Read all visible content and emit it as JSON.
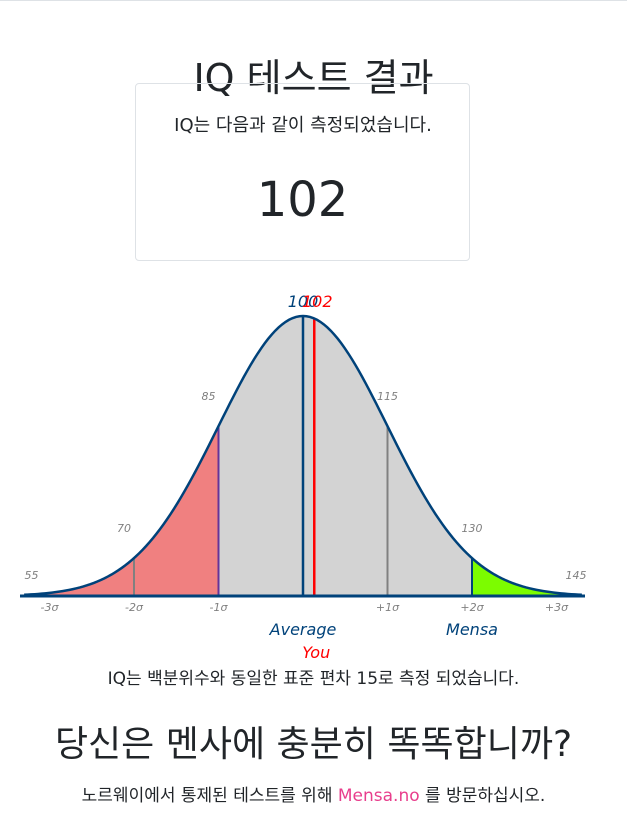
{
  "page": {
    "title": "IQ 테스트 결과",
    "measured_text": "IQ는 다음과 같이 측정되었습니다.",
    "score": "102"
  },
  "chart_data": {
    "type": "area",
    "distribution": "normal",
    "mean": 100,
    "sd": 15,
    "xlim": [
      55,
      145
    ],
    "sigma_labels": [
      "-3σ",
      "-2σ",
      "-1σ",
      "+1σ",
      "+2σ",
      "+3σ"
    ],
    "iq_labels": [
      "55",
      "70",
      "85",
      "115",
      "130",
      "145"
    ],
    "markers": [
      {
        "label": "Average",
        "value_label": "100",
        "value": 100,
        "color": "#00427a"
      },
      {
        "label": "You",
        "value_label": "102",
        "value": 102,
        "color": "#ff0000"
      },
      {
        "label": "Mensa",
        "value": 130,
        "color": "#00427a"
      }
    ],
    "regions": [
      {
        "from": 55,
        "to": 85,
        "color": "#f08080"
      },
      {
        "from": 85,
        "to": 130,
        "color": "#d3d3d3"
      },
      {
        "from": 130,
        "to": 145,
        "color": "#7cfc00"
      }
    ],
    "curve_color": "#00427a",
    "line_colors": {
      "sigma": "#808080",
      "minus1": "#663399"
    }
  },
  "chart_note": "IQ는 백분위수와 동일한 표준 편차 15로 측정 되었습니다.",
  "mensa": {
    "heading": "당신은 멘사에 충분히 똑똑합니까?",
    "visit_prefix": "노르웨이에서 통제된 테스트를 위해",
    "link_text": "Mensa.no",
    "visit_suffix": "를 방문하십시오."
  }
}
